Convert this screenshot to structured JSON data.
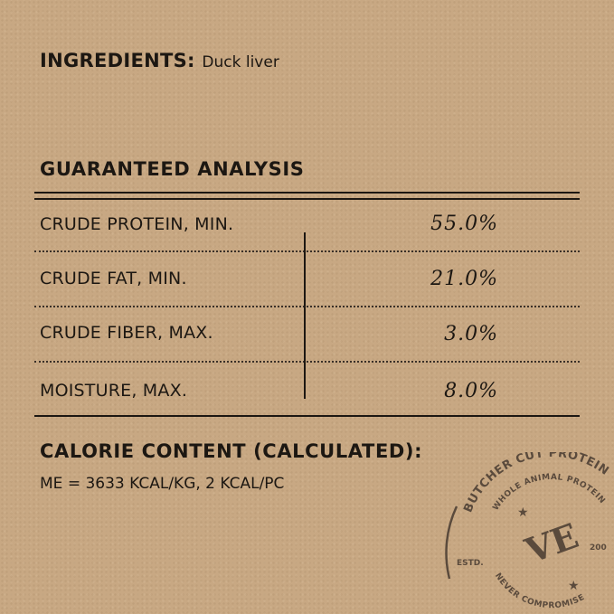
{
  "ingredients": {
    "label": "INGREDIENTS:",
    "value": "Duck liver"
  },
  "analysis": {
    "title": "GUARANTEED ANALYSIS",
    "rows": [
      {
        "label": "CRUDE PROTEIN, MIN.",
        "value": "55.0%"
      },
      {
        "label": "CRUDE FAT, MIN.",
        "value": "21.0%"
      },
      {
        "label": "CRUDE FIBER, MAX.",
        "value": "3.0%"
      },
      {
        "label": "MOISTURE, MAX.",
        "value": "8.0%"
      }
    ]
  },
  "calorie": {
    "title": "CALORIE CONTENT (CALCULATED):",
    "value": "ME = 3633 KCAL/KG, 2 KCAL/PC"
  },
  "stamp": {
    "outer": "BUTCHER CUT PROTEIN",
    "inner": "WHOLE ANIMAL PROTEIN",
    "logo": "VE",
    "left": "ESTD.",
    "right": "200",
    "bottom": "NEVER COMPROMISE",
    "color": "#5a4a3c"
  }
}
